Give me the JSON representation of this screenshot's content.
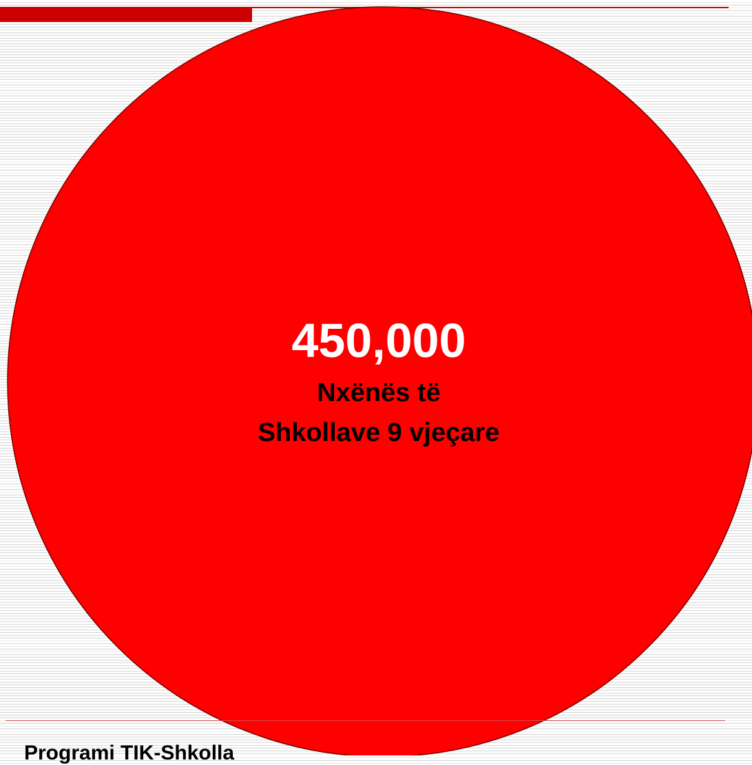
{
  "slide": {
    "stat_value": "450,000",
    "caption_line1": "Nxënës të",
    "caption_line2": "Shkollave 9 vjeçare",
    "footer": "Programi TIK-Shkolla"
  },
  "colors": {
    "circle_fill": "#ff0000",
    "accent_bar": "#cc0000",
    "stat_text": "#ffffff",
    "caption_text": "#000000"
  }
}
